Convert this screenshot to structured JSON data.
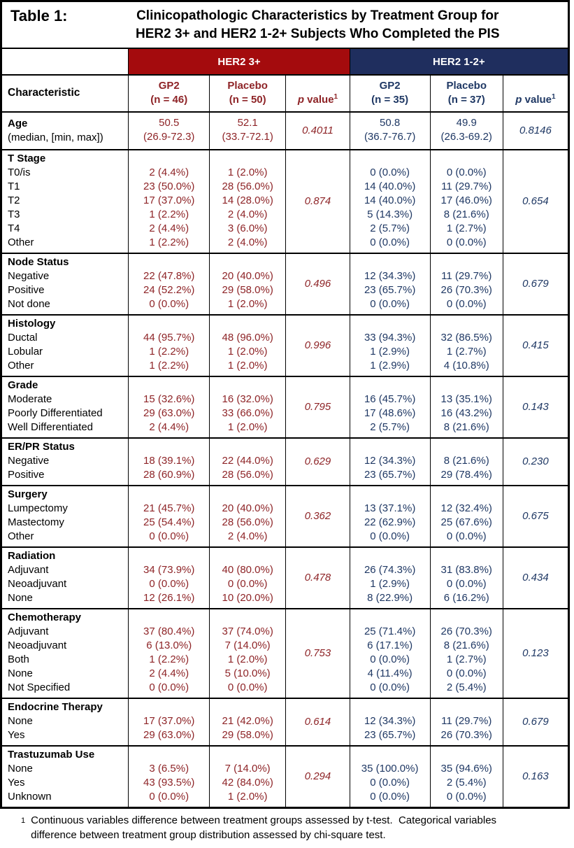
{
  "title": {
    "label": "Table 1:",
    "line1": "Clinicopathologic Characteristics by Treatment Group for",
    "line2": "HER2 3+ and HER2 1-2+ Subjects Who Completed the PIS"
  },
  "colors": {
    "red_band": "#A40B0D",
    "navy_band": "#1F2E5E",
    "red_text": "#8E2427",
    "navy_text": "#1F3864",
    "border": "#000000"
  },
  "groups": {
    "g1": {
      "label": "HER2 3+"
    },
    "g2": {
      "label": "HER2 1-2+"
    }
  },
  "header": {
    "characteristic": "Characteristic",
    "g1_gp2_line1": "GP2",
    "g1_gp2_line2": "(n = 46)",
    "g1_placebo_line1": "Placebo",
    "g1_placebo_line2": "(n = 50)",
    "g2_gp2_line1": "GP2",
    "g2_gp2_line2": "(n = 35)",
    "g2_placebo_line1": "Placebo",
    "g2_placebo_line2": "(n = 37)",
    "p_italic": "p",
    "p_rest": " value",
    "p_sup": "1"
  },
  "sections": [
    {
      "label": "Age",
      "sublabel": "(median, [min, max])",
      "items": [],
      "g1_gp2": [
        "50.5",
        "(26.9-72.3)"
      ],
      "g1_placebo": [
        "52.1",
        "(33.7-72.1)"
      ],
      "g1_p": "0.4011",
      "g2_gp2": [
        "50.8",
        "(36.7-76.7)"
      ],
      "g2_placebo": [
        "49.9",
        "(26.3-69.2)"
      ],
      "g2_p": "0.8146"
    },
    {
      "label": "T Stage",
      "items": [
        "T0/is",
        "T1",
        "T2",
        "T3",
        "T4",
        "Other"
      ],
      "g1_gp2": [
        "2 (4.4%)",
        "23 (50.0%)",
        "17 (37.0%)",
        "1 (2.2%)",
        "2 (4.4%)",
        "1 (2.2%)"
      ],
      "g1_placebo": [
        "1 (2.0%)",
        "28 (56.0%)",
        "14 (28.0%)",
        "2 (4.0%)",
        "3 (6.0%)",
        "2 (4.0%)"
      ],
      "g1_p": "0.874",
      "g2_gp2": [
        "0 (0.0%)",
        "14 (40.0%)",
        "14 (40.0%)",
        "5 (14.3%)",
        "2 (5.7%)",
        "0 (0.0%)"
      ],
      "g2_placebo": [
        "0 (0.0%)",
        "11 (29.7%)",
        "17 (46.0%)",
        "8 (21.6%)",
        "1 (2.7%)",
        "0 (0.0%)"
      ],
      "g2_p": "0.654"
    },
    {
      "label": "Node Status",
      "items": [
        "Negative",
        "Positive",
        "Not done"
      ],
      "g1_gp2": [
        "22 (47.8%)",
        "24 (52.2%)",
        "0 (0.0%)"
      ],
      "g1_placebo": [
        "20 (40.0%)",
        "29 (58.0%)",
        "1 (2.0%)"
      ],
      "g1_p": "0.496",
      "g2_gp2": [
        "12 (34.3%)",
        "23 (65.7%)",
        "0 (0.0%)"
      ],
      "g2_placebo": [
        "11 (29.7%)",
        "26 (70.3%)",
        "0 (0.0%)"
      ],
      "g2_p": "0.679"
    },
    {
      "label": "Histology",
      "items": [
        "Ductal",
        "Lobular",
        "Other"
      ],
      "g1_gp2": [
        "44 (95.7%)",
        "1 (2.2%)",
        "1 (2.2%)"
      ],
      "g1_placebo": [
        "48 (96.0%)",
        "1 (2.0%)",
        "1 (2.0%)"
      ],
      "g1_p": "0.996",
      "g2_gp2": [
        "33 (94.3%)",
        "1 (2.9%)",
        "1 (2.9%)"
      ],
      "g2_placebo": [
        "32 (86.5%)",
        "1 (2.7%)",
        "4 (10.8%)"
      ],
      "g2_p": "0.415"
    },
    {
      "label": "Grade",
      "items": [
        "Moderate",
        "Poorly Differentiated",
        "Well Differentiated"
      ],
      "g1_gp2": [
        "15 (32.6%)",
        "29 (63.0%)",
        "2 (4.4%)"
      ],
      "g1_placebo": [
        "16 (32.0%)",
        "33 (66.0%)",
        "1 (2.0%)"
      ],
      "g1_p": "0.795",
      "g2_gp2": [
        "16 (45.7%)",
        "17 (48.6%)",
        "2 (5.7%)"
      ],
      "g2_placebo": [
        "13 (35.1%)",
        "16 (43.2%)",
        "8 (21.6%)"
      ],
      "g2_p": "0.143"
    },
    {
      "label": "ER/PR Status",
      "items": [
        "Negative",
        "Positive"
      ],
      "g1_gp2": [
        "18 (39.1%)",
        "28 (60.9%)"
      ],
      "g1_placebo": [
        "22 (44.0%)",
        "28 (56.0%)"
      ],
      "g1_p": "0.629",
      "g2_gp2": [
        "12 (34.3%)",
        "23 (65.7%)"
      ],
      "g2_placebo": [
        "8 (21.6%)",
        "29 (78.4%)"
      ],
      "g2_p": "0.230"
    },
    {
      "label": "Surgery",
      "items": [
        "Lumpectomy",
        "Mastectomy",
        "Other"
      ],
      "g1_gp2": [
        "21 (45.7%)",
        "25 (54.4%)",
        "0 (0.0%)"
      ],
      "g1_placebo": [
        "20 (40.0%)",
        "28 (56.0%)",
        "2 (4.0%)"
      ],
      "g1_p": "0.362",
      "g2_gp2": [
        "13 (37.1%)",
        "22 (62.9%)",
        "0 (0.0%)"
      ],
      "g2_placebo": [
        "12 (32.4%)",
        "25 (67.6%)",
        "0 (0.0%)"
      ],
      "g2_p": "0.675"
    },
    {
      "label": "Radiation",
      "items": [
        "Adjuvant",
        "Neoadjuvant",
        "None"
      ],
      "g1_gp2": [
        "34 (73.9%)",
        "0 (0.0%)",
        "12 (26.1%)"
      ],
      "g1_placebo": [
        "40 (80.0%)",
        "0 (0.0%)",
        "10 (20.0%)"
      ],
      "g1_p": "0.478",
      "g2_gp2": [
        "26 (74.3%)",
        "1 (2.9%)",
        "8 (22.9%)"
      ],
      "g2_placebo": [
        "31 (83.8%)",
        "0 (0.0%)",
        "6 (16.2%)"
      ],
      "g2_p": "0.434"
    },
    {
      "label": "Chemotherapy",
      "items": [
        "Adjuvant",
        "Neoadjuvant",
        "Both",
        "None",
        "Not Specified"
      ],
      "g1_gp2": [
        "37 (80.4%)",
        "6 (13.0%)",
        "1 (2.2%)",
        "2 (4.4%)",
        "0 (0.0%)"
      ],
      "g1_placebo": [
        "37 (74.0%)",
        "7 (14.0%)",
        "1 (2.0%)",
        "5 (10.0%)",
        "0 (0.0%)"
      ],
      "g1_p": "0.753",
      "g2_gp2": [
        "25 (71.4%)",
        "6 (17.1%)",
        "0 (0.0%)",
        "4 (11.4%)",
        "0 (0.0%)"
      ],
      "g2_placebo": [
        "26 (70.3%)",
        "8 (21.6%)",
        "1 (2.7%)",
        "0 (0.0%)",
        "2 (5.4%)"
      ],
      "g2_p": "0.123"
    },
    {
      "label": "Endocrine Therapy",
      "items": [
        "None",
        "Yes"
      ],
      "g1_gp2": [
        "17 (37.0%)",
        "29 (63.0%)"
      ],
      "g1_placebo": [
        "21 (42.0%)",
        "29 (58.0%)"
      ],
      "g1_p": "0.614",
      "g2_gp2": [
        "12 (34.3%)",
        "23 (65.7%)"
      ],
      "g2_placebo": [
        "11 (29.7%)",
        "26 (70.3%)"
      ],
      "g2_p": "0.679"
    },
    {
      "label": "Trastuzumab Use",
      "items": [
        "None",
        "Yes",
        "Unknown"
      ],
      "g1_gp2": [
        "3 (6.5%)",
        "43 (93.5%)",
        "0 (0.0%)"
      ],
      "g1_placebo": [
        "7 (14.0%)",
        "42 (84.0%)",
        "1 (2.0%)"
      ],
      "g1_p": "0.294",
      "g2_gp2": [
        "35 (100.0%)",
        "0 (0.0%)",
        "0 (0.0%)"
      ],
      "g2_placebo": [
        "35 (94.6%)",
        "2 (5.4%)",
        "0 (0.0%)"
      ],
      "g2_p": "0.163"
    }
  ],
  "footnote": {
    "sup": "1",
    "line1": "Continuous variables difference between treatment groups assessed by t-test.  Categorical variables",
    "line2": "difference between treatment group distribution assessed by chi-square test."
  }
}
